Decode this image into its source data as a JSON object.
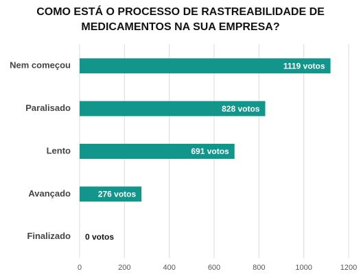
{
  "chart_data": {
    "type": "hbar",
    "title": [
      "COMO ESTÁ O PROCESSO DE RASTREABILIDADE DE",
      "MEDICAMENTOS NA SUA EMPRESA?"
    ],
    "categories": [
      "Nem começou",
      "Paralisado",
      "Lento",
      "Avançado",
      "Finalizado"
    ],
    "values": [
      1119,
      828,
      691,
      276,
      0
    ],
    "value_labels": [
      "1119 votos",
      "828 votos",
      "691 votos",
      "276 votos",
      "0 votos"
    ],
    "color": "#12968b",
    "xlim": [
      0,
      1200
    ],
    "xticks": [
      0,
      200,
      400,
      600,
      800,
      1000,
      1200
    ],
    "grid": true
  }
}
